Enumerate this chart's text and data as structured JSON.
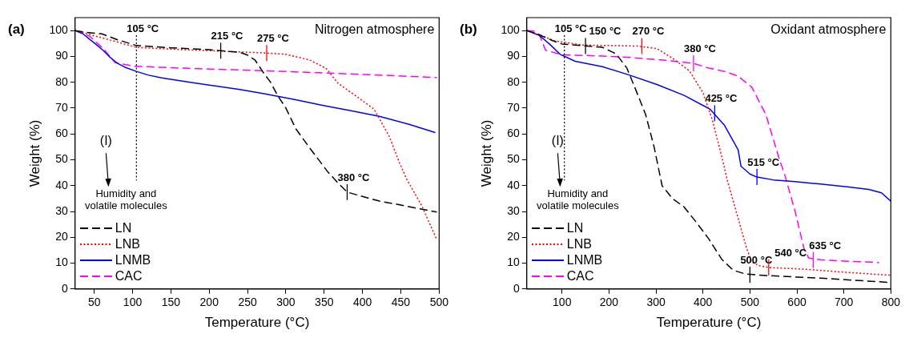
{
  "chart_data": [
    {
      "type": "line",
      "title": "(a)",
      "xlabel": "Temperature (°C)",
      "ylabel": "Weight (%)",
      "xlim": [
        25,
        500
      ],
      "xticks": [
        50,
        100,
        150,
        200,
        250,
        300,
        350,
        400,
        450,
        500
      ],
      "ylim": [
        0,
        105
      ],
      "yticks": [
        0,
        10,
        20,
        30,
        40,
        50,
        60,
        70,
        80,
        90,
        100
      ],
      "grid": false,
      "legend": "bottom left",
      "marker": "none",
      "series": [
        {
          "name": "LN",
          "color": "#000000",
          "line_style": "dashed",
          "x": [
            25,
            40,
            60,
            80,
            105,
            150,
            200,
            215,
            240,
            250,
            260,
            270,
            280,
            290,
            300,
            313,
            330,
            354,
            368,
            380,
            400,
            422,
            450,
            475,
            497
          ],
          "values": [
            100,
            99.3,
            98.7,
            96.5,
            94.2,
            93.3,
            92.6,
            92.2,
            91.6,
            90.5,
            88.5,
            84,
            80,
            74.5,
            70,
            62,
            55,
            45.6,
            41,
            37.5,
            35.8,
            34,
            32.5,
            31,
            29.8
          ]
        },
        {
          "name": "LNB",
          "color": "#ff0000",
          "line_style": "dotted",
          "x": [
            25,
            50,
            75,
            105,
            150,
            200,
            250,
            275,
            300,
            331,
            345,
            353,
            368,
            390,
            415,
            435,
            448,
            458,
            477,
            493,
            497
          ],
          "values": [
            100,
            98,
            96,
            93.5,
            92.8,
            92.2,
            91.6,
            91.3,
            90.8,
            88.6,
            86.5,
            85.2,
            79.6,
            75,
            69.6,
            59,
            49,
            42.3,
            32.4,
            21.7,
            19
          ]
        },
        {
          "name": "LNMB",
          "color": "#0000ff",
          "line_style": "solid",
          "x": [
            25,
            35,
            44,
            53,
            62,
            70,
            80,
            90,
            105,
            120,
            138,
            170,
            204,
            240,
            273,
            310,
            349,
            385,
            422,
            460,
            495
          ],
          "values": [
            100,
            98.8,
            96.6,
            94.5,
            92.2,
            89.8,
            87.4,
            85.8,
            84.2,
            82.8,
            81.7,
            80.2,
            78.7,
            77.2,
            75.5,
            73.4,
            71,
            69,
            66.8,
            63.8,
            60.5
          ]
        },
        {
          "name": "CAC",
          "color": "#ff00ff",
          "line_style": "dashed",
          "x": [
            25,
            44,
            62,
            77,
            102,
            150,
            200,
            275,
            350,
            420,
            497
          ],
          "values": [
            100,
            97.8,
            93,
            87.6,
            86.2,
            85.6,
            85.1,
            84.4,
            83.6,
            82.8,
            81.8
          ]
        }
      ],
      "ref_lines": [
        {
          "axis": "x",
          "value": 105,
          "label": "105 °C",
          "color": "#000000",
          "line_style": "dotted"
        }
      ],
      "annotations": [
        "Nitrogen atmosphere",
        "(I)",
        "Humidity and\nvolatile molecules",
        {
          "text": "215 °C",
          "x": 215,
          "y": 92.2
        },
        {
          "text": "275 °C",
          "x": 275,
          "y": 91.3
        },
        {
          "text": "380 °C",
          "x": 380,
          "y": 37.5
        }
      ]
    },
    {
      "type": "line",
      "title": "(b)",
      "xlabel": "Temperature (°C)",
      "ylabel": "Weight (%)",
      "xlim": [
        25,
        800
      ],
      "xticks": [
        100,
        200,
        300,
        400,
        500,
        600,
        700,
        800
      ],
      "ylim": [
        0,
        105
      ],
      "yticks": [
        0,
        10,
        20,
        30,
        40,
        50,
        60,
        70,
        80,
        90,
        100
      ],
      "grid": false,
      "legend": "bottom left",
      "marker": "none",
      "series": [
        {
          "name": "LN",
          "color": "#000000",
          "line_style": "dashed",
          "x": [
            25,
            50,
            81,
            100,
            145,
            186,
            215,
            238,
            255,
            278,
            296,
            313,
            335,
            360,
            385,
            412,
            440,
            464,
            490,
            534,
            600,
            650,
            720,
            800
          ],
          "values": [
            100,
            98.5,
            96,
            94.8,
            94.1,
            93.5,
            91,
            85.5,
            78,
            67.5,
            55,
            40,
            35,
            31.7,
            26,
            19.5,
            11.5,
            7.3,
            5.8,
            5.2,
            4.6,
            4.2,
            3.4,
            2.5
          ]
        },
        {
          "name": "LNB",
          "color": "#ff0000",
          "line_style": "dotted",
          "x": [
            25,
            50,
            84,
            145,
            200,
            261,
            302,
            336,
            371,
            400,
            420,
            441,
            452,
            475,
            493,
            504,
            520,
            540,
            620,
            700,
            800
          ],
          "values": [
            100,
            98.5,
            96,
            94.4,
            94.2,
            94,
            93,
            89.2,
            84.4,
            76,
            65.4,
            50.6,
            42,
            27.3,
            15.7,
            10.4,
            9,
            8.3,
            7.6,
            6.5,
            5.3
          ]
        },
        {
          "name": "LNMB",
          "color": "#0000ff",
          "line_style": "solid",
          "x": [
            25,
            52,
            75,
            96,
            128,
            186,
            243,
            302,
            360,
            415,
            446,
            475,
            481,
            500,
            515,
            550,
            591,
            650,
            707,
            753,
            780,
            800
          ],
          "values": [
            100,
            98.1,
            94.5,
            90.8,
            88.1,
            86,
            82.8,
            79.1,
            74.9,
            69.6,
            63.3,
            53.8,
            47.5,
            44.5,
            43.3,
            42.2,
            41.6,
            40.6,
            39.5,
            38.5,
            37.2,
            34
          ]
        },
        {
          "name": "CAC",
          "color": "#ff00ff",
          "line_style": "dashed",
          "x": [
            25,
            40,
            52,
            65,
            100,
            175,
            243,
            320,
            380,
            412,
            450,
            475,
            504,
            534,
            562,
            574,
            597,
            615,
            625,
            650,
            700,
            759,
            775
          ],
          "values": [
            100,
            99.8,
            98.3,
            92.4,
            90.6,
            90.2,
            89.6,
            88.5,
            87.3,
            85.5,
            84,
            82.3,
            78.1,
            67.5,
            50.6,
            44.3,
            29.5,
            15.7,
            12,
            11.3,
            10.8,
            10.4,
            10.2
          ]
        }
      ],
      "ref_lines": [
        {
          "axis": "x",
          "value": 105,
          "label": "105 °C",
          "color": "#000000",
          "line_style": "dotted"
        }
      ],
      "annotations": [
        "Oxidant atmosphere",
        "(I)",
        "Humidity and\nvolatile molecules",
        {
          "text": "150 °C",
          "x": 150,
          "y": 94
        },
        {
          "text": "270 °C",
          "x": 270,
          "y": 94
        },
        {
          "text": "380 °C",
          "x": 380,
          "y": 87.3
        },
        {
          "text": "425 °C",
          "x": 425,
          "y": 68
        },
        {
          "text": "515 °C",
          "x": 515,
          "y": 43.3
        },
        {
          "text": "500 °C",
          "x": 500,
          "y": 5.5
        },
        {
          "text": "540 °C",
          "x": 540,
          "y": 8.3
        },
        {
          "text": "635 °C",
          "x": 635,
          "y": 11.2
        }
      ]
    }
  ]
}
